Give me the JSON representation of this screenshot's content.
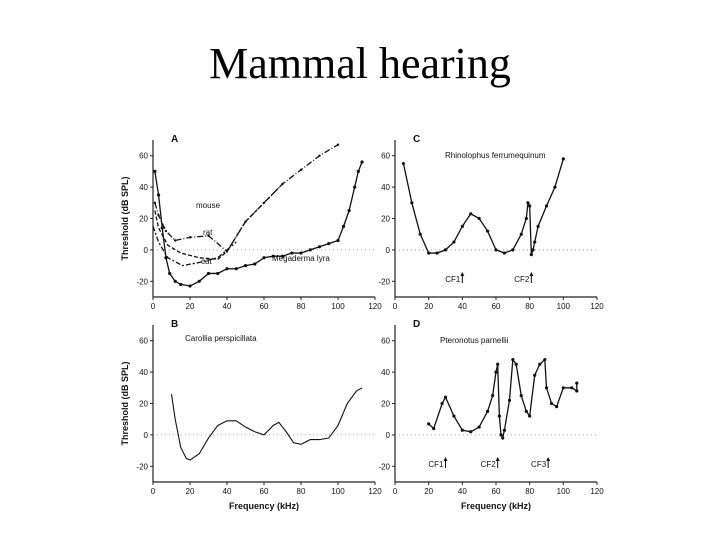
{
  "title": "Mammal hearing",
  "chart_data": [
    {
      "panel": "A",
      "type": "line",
      "ylabel": "Threshold (dB SPL)",
      "xlim": [
        0,
        120
      ],
      "ylim": [
        -30,
        70
      ],
      "xticks": [
        0,
        20,
        40,
        60,
        80,
        100,
        120
      ],
      "yticks": [
        -20,
        0,
        20,
        40,
        60
      ],
      "zero_line": true,
      "series": [
        {
          "name": "mouse",
          "style": "dashdot",
          "x": [
            1,
            3,
            7,
            12,
            20,
            30,
            40,
            50,
            60,
            70,
            80,
            90,
            100
          ],
          "y": [
            30,
            22,
            12,
            6,
            8,
            9,
            -1,
            18,
            30,
            42,
            51,
            60,
            67
          ]
        },
        {
          "name": "rat",
          "style": "dashed",
          "x": [
            1,
            3,
            8,
            15,
            25,
            35,
            40,
            50,
            60,
            70
          ],
          "y": [
            25,
            14,
            3,
            -2,
            -5,
            -6,
            -1,
            18,
            30,
            42
          ]
        },
        {
          "name": "cat",
          "style": "dashdot2",
          "x": [
            0,
            3,
            8,
            16,
            25,
            35,
            45
          ],
          "y": [
            15,
            5,
            -5,
            -10,
            -8,
            -5,
            5
          ]
        },
        {
          "name": "Megaderma lyra",
          "style": "solid-markers",
          "x": [
            1,
            3,
            5,
            7,
            9,
            12,
            15,
            20,
            25,
            30,
            35,
            40,
            45,
            50,
            55,
            60,
            65,
            70,
            75,
            80,
            85,
            90,
            95,
            100,
            103,
            106,
            109,
            111,
            113
          ],
          "y": [
            50,
            35,
            14,
            -5,
            -15,
            -20,
            -22,
            -23,
            -20,
            -15,
            -15,
            -12,
            -12,
            -10,
            -9,
            -5,
            -4,
            -4,
            -2,
            -2,
            0,
            2,
            4,
            6,
            15,
            25,
            40,
            50,
            56
          ]
        }
      ],
      "annotations": [
        "mouse",
        "rat",
        "cat",
        "Megaderma lyra"
      ]
    },
    {
      "panel": "B",
      "type": "line",
      "ylabel": "Threshold (dB SPL)",
      "xlabel": "Frequency (kHz)",
      "xlim": [
        0,
        120
      ],
      "ylim": [
        -30,
        70
      ],
      "xticks": [
        0,
        20,
        40,
        60,
        80,
        100,
        120
      ],
      "yticks": [
        -20,
        0,
        20,
        40,
        60
      ],
      "zero_line": true,
      "series": [
        {
          "name": "Carollia perspicillata",
          "style": "solid",
          "x": [
            10,
            12,
            15,
            18,
            20,
            25,
            30,
            35,
            40,
            45,
            50,
            55,
            60,
            65,
            68,
            72,
            76,
            80,
            85,
            90,
            95,
            100,
            105,
            110,
            113
          ],
          "y": [
            26,
            10,
            -8,
            -15,
            -16,
            -12,
            -2,
            6,
            9,
            9,
            5,
            2,
            0,
            6,
            8,
            2,
            -5,
            -6,
            -3,
            -3,
            -2,
            6,
            20,
            28,
            30
          ]
        }
      ],
      "annotations": [
        "Carollia perspicillata"
      ]
    },
    {
      "panel": "C",
      "type": "line",
      "xlim": [
        0,
        120
      ],
      "ylim": [
        -30,
        70
      ],
      "xticks": [
        0,
        20,
        40,
        60,
        80,
        100,
        120
      ],
      "yticks": [
        -20,
        0,
        20,
        40,
        60
      ],
      "zero_line": true,
      "series": [
        {
          "name": "Rhinolophus ferrumequinum",
          "style": "solid-markers",
          "x": [
            5,
            10,
            15,
            20,
            25,
            30,
            35,
            40,
            45,
            50,
            55,
            60,
            65,
            70,
            75,
            78,
            79,
            80,
            81,
            82,
            83,
            85,
            90,
            95,
            100
          ],
          "y": [
            55,
            30,
            10,
            -2,
            -2,
            0,
            5,
            15,
            23,
            20,
            12,
            0,
            -2,
            0,
            10,
            20,
            30,
            28,
            -3,
            0,
            5,
            15,
            28,
            40,
            58
          ]
        }
      ],
      "markers": [
        {
          "label": "CF1",
          "x": 40
        },
        {
          "label": "CF2",
          "x": 81
        }
      ],
      "annotations": [
        "Rhinolophus ferrumequinum"
      ]
    },
    {
      "panel": "D",
      "type": "line",
      "xlabel": "Frequency (kHz)",
      "xlim": [
        0,
        120
      ],
      "ylim": [
        -30,
        70
      ],
      "xticks": [
        0,
        20,
        40,
        60,
        80,
        100,
        120
      ],
      "yticks": [
        -20,
        0,
        20,
        40,
        60
      ],
      "zero_line": true,
      "series": [
        {
          "name": "Pteronotus parnellii",
          "style": "solid-markers",
          "x": [
            20,
            23,
            28,
            30,
            35,
            40,
            45,
            50,
            55,
            58,
            60,
            61,
            62,
            63,
            64,
            65,
            68,
            70,
            72,
            75,
            78,
            80,
            83,
            86,
            89,
            90,
            93,
            96,
            100,
            105,
            108,
            108
          ],
          "y": [
            7,
            4,
            20,
            24,
            12,
            3,
            2,
            5,
            15,
            25,
            40,
            45,
            12,
            0,
            -2,
            3,
            22,
            48,
            45,
            25,
            15,
            12,
            38,
            45,
            48,
            30,
            20,
            18,
            30,
            30,
            28,
            33
          ]
        }
      ],
      "markers": [
        {
          "label": "CF1",
          "x": 30
        },
        {
          "label": "CF2",
          "x": 61
        },
        {
          "label": "CF3",
          "x": 91
        }
      ],
      "annotations": [
        "Pteronotus parnellii"
      ]
    }
  ]
}
